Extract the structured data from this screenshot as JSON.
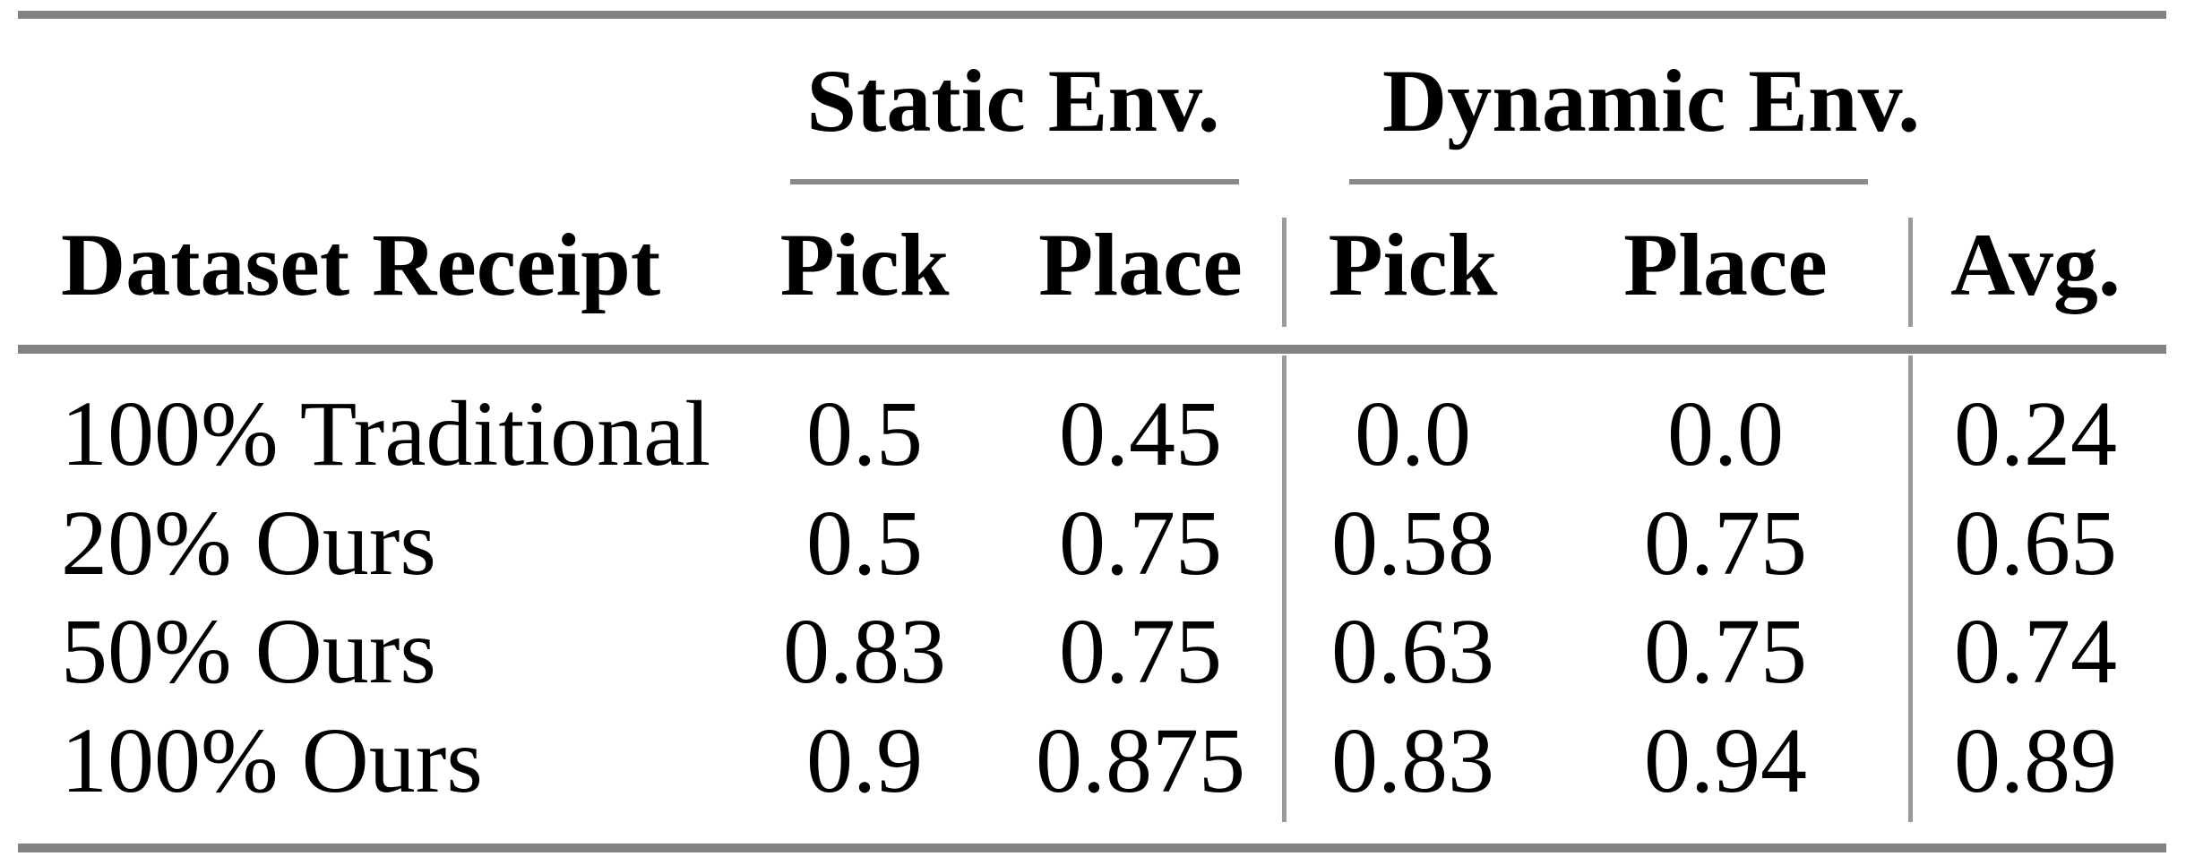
{
  "figure": {
    "type": "table",
    "groups": [
      {
        "label": "Static Env."
      },
      {
        "label": "Dynamic Env."
      }
    ],
    "columns": [
      "Dataset Receipt",
      "Pick",
      "Place",
      "Pick",
      "Place",
      "Avg."
    ],
    "rows": [
      {
        "label": "100% Traditional",
        "values": [
          "0.5",
          "0.45",
          "0.0",
          "0.0",
          "0.24"
        ]
      },
      {
        "label": "20% Ours",
        "values": [
          "0.5",
          "0.75",
          "0.58",
          "0.75",
          "0.65"
        ]
      },
      {
        "label": "50% Ours",
        "values": [
          "0.83",
          "0.75",
          "0.63",
          "0.75",
          "0.74"
        ]
      },
      {
        "label": "100% Ours",
        "values": [
          "0.9",
          "0.875",
          "0.83",
          "0.94",
          "0.89"
        ]
      }
    ],
    "colors": {
      "rule": "#828282",
      "thin_rule": "#8a8a8a",
      "vline": "#9a9a9a",
      "text": "#000000",
      "background": "#ffffff"
    }
  },
  "chart_data": {
    "type": "table",
    "columns": [
      "Dataset Receipt",
      "Static Env. Pick",
      "Static Env. Place",
      "Dynamic Env. Pick",
      "Dynamic Env. Place",
      "Avg."
    ],
    "rows": [
      [
        "100% Traditional",
        0.5,
        0.45,
        0.0,
        0.0,
        0.24
      ],
      [
        "20% Ours",
        0.5,
        0.75,
        0.58,
        0.75,
        0.65
      ],
      [
        "50% Ours",
        0.83,
        0.75,
        0.63,
        0.75,
        0.74
      ],
      [
        "100% Ours",
        0.9,
        0.875,
        0.83,
        0.94,
        0.89
      ]
    ],
    "layout": {
      "group_headers": [
        "Static Env.",
        "Dynamic Env."
      ],
      "grid": "gray booktabs rules, two vertical separators"
    }
  }
}
